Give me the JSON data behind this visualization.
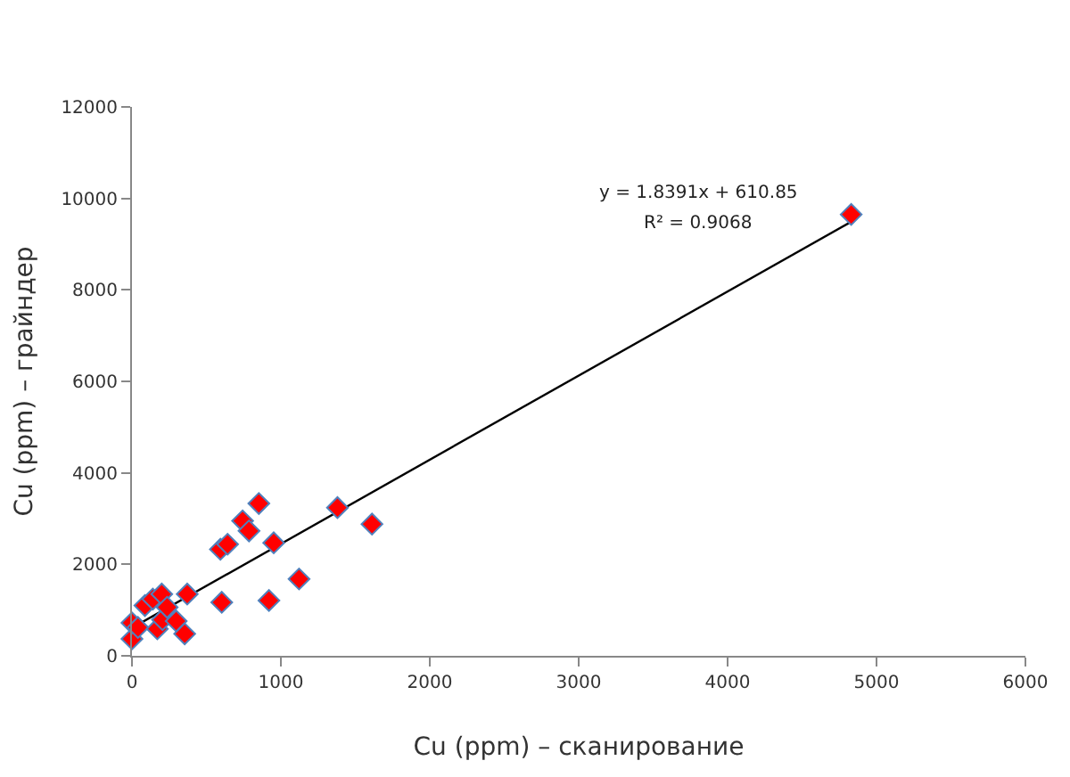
{
  "chart_data": {
    "type": "scatter",
    "xlabel": "Cu (ppm) – сканирование",
    "ylabel": "Cu (ppm) – грайндер",
    "xlim": [
      0,
      6000
    ],
    "xticks": [
      0,
      1000,
      2000,
      3000,
      4000,
      5000,
      6000
    ],
    "ylim": [
      0,
      12000
    ],
    "yticks": [
      0,
      2000,
      4000,
      6000,
      8000,
      10000,
      12000
    ],
    "grid": false,
    "marker": "diamond",
    "annotations": [
      "y = 1.8391x + 610.85",
      "R² = 0.9068"
    ],
    "series": [
      {
        "color": "#ff0000",
        "x": [
          0,
          0,
          40,
          87,
          140,
          200,
          170,
          205,
          236,
          297,
          354,
          371,
          594,
          642,
          603,
          743,
          786,
          852,
          952,
          920,
          1122,
          1380,
          1612,
          4830
        ],
        "values": [
          370,
          720,
          620,
          1100,
          1240,
          1350,
          590,
          790,
          1060,
          760,
          480,
          1350,
          2330,
          2440,
          1170,
          2950,
          2730,
          3330,
          2470,
          1210,
          1680,
          3240,
          2880,
          9650
        ]
      },
      {
        "type": "line",
        "color": "#000000",
        "marker": "none",
        "line_style": "solid",
        "x": [
          0,
          4830
        ],
        "values": [
          610,
          9490
        ]
      }
    ]
  }
}
